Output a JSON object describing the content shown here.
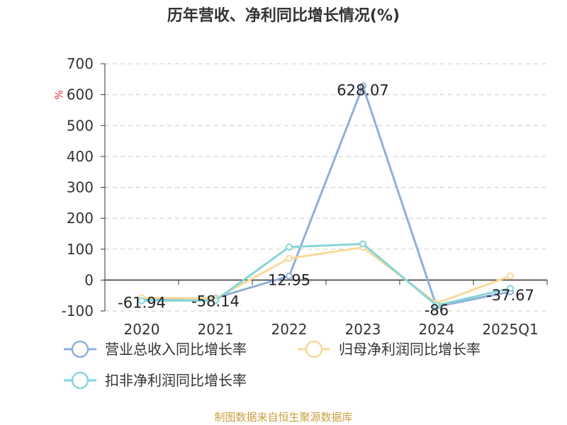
{
  "title": "历年营收、净利同比增长情况(%)",
  "source": "制图数据来自恒生聚源数据库",
  "chart_data": {
    "type": "line",
    "title": "历年营收、净利同比增长情况(%)",
    "ylabel": "%",
    "categories": [
      "2020",
      "2021",
      "2022",
      "2023",
      "2024",
      "2025Q1"
    ],
    "ylim": [
      -100,
      700
    ],
    "yticks": [
      700,
      600,
      500,
      400,
      300,
      200,
      100,
      0,
      -100
    ],
    "grid": true,
    "legend_position": "bottom",
    "series": [
      {
        "name": "营业总收入同比增长率",
        "color": "#8fb0d8",
        "values": [
          -61.94,
          -58.14,
          12.95,
          628.07,
          -86,
          -37.67
        ],
        "labels": [
          "-61.94",
          "-58.14",
          "12.95",
          "628.07",
          "-86",
          "-37.67"
        ]
      },
      {
        "name": "归母净利润同比增长率",
        "color": "#f9d99a",
        "values": [
          -57,
          -60,
          70,
          106,
          -75,
          13
        ]
      },
      {
        "name": "扣非净利润同比增长率",
        "color": "#86d5d7",
        "values": [
          -67,
          -66,
          107,
          117,
          -82,
          -27
        ]
      }
    ]
  }
}
